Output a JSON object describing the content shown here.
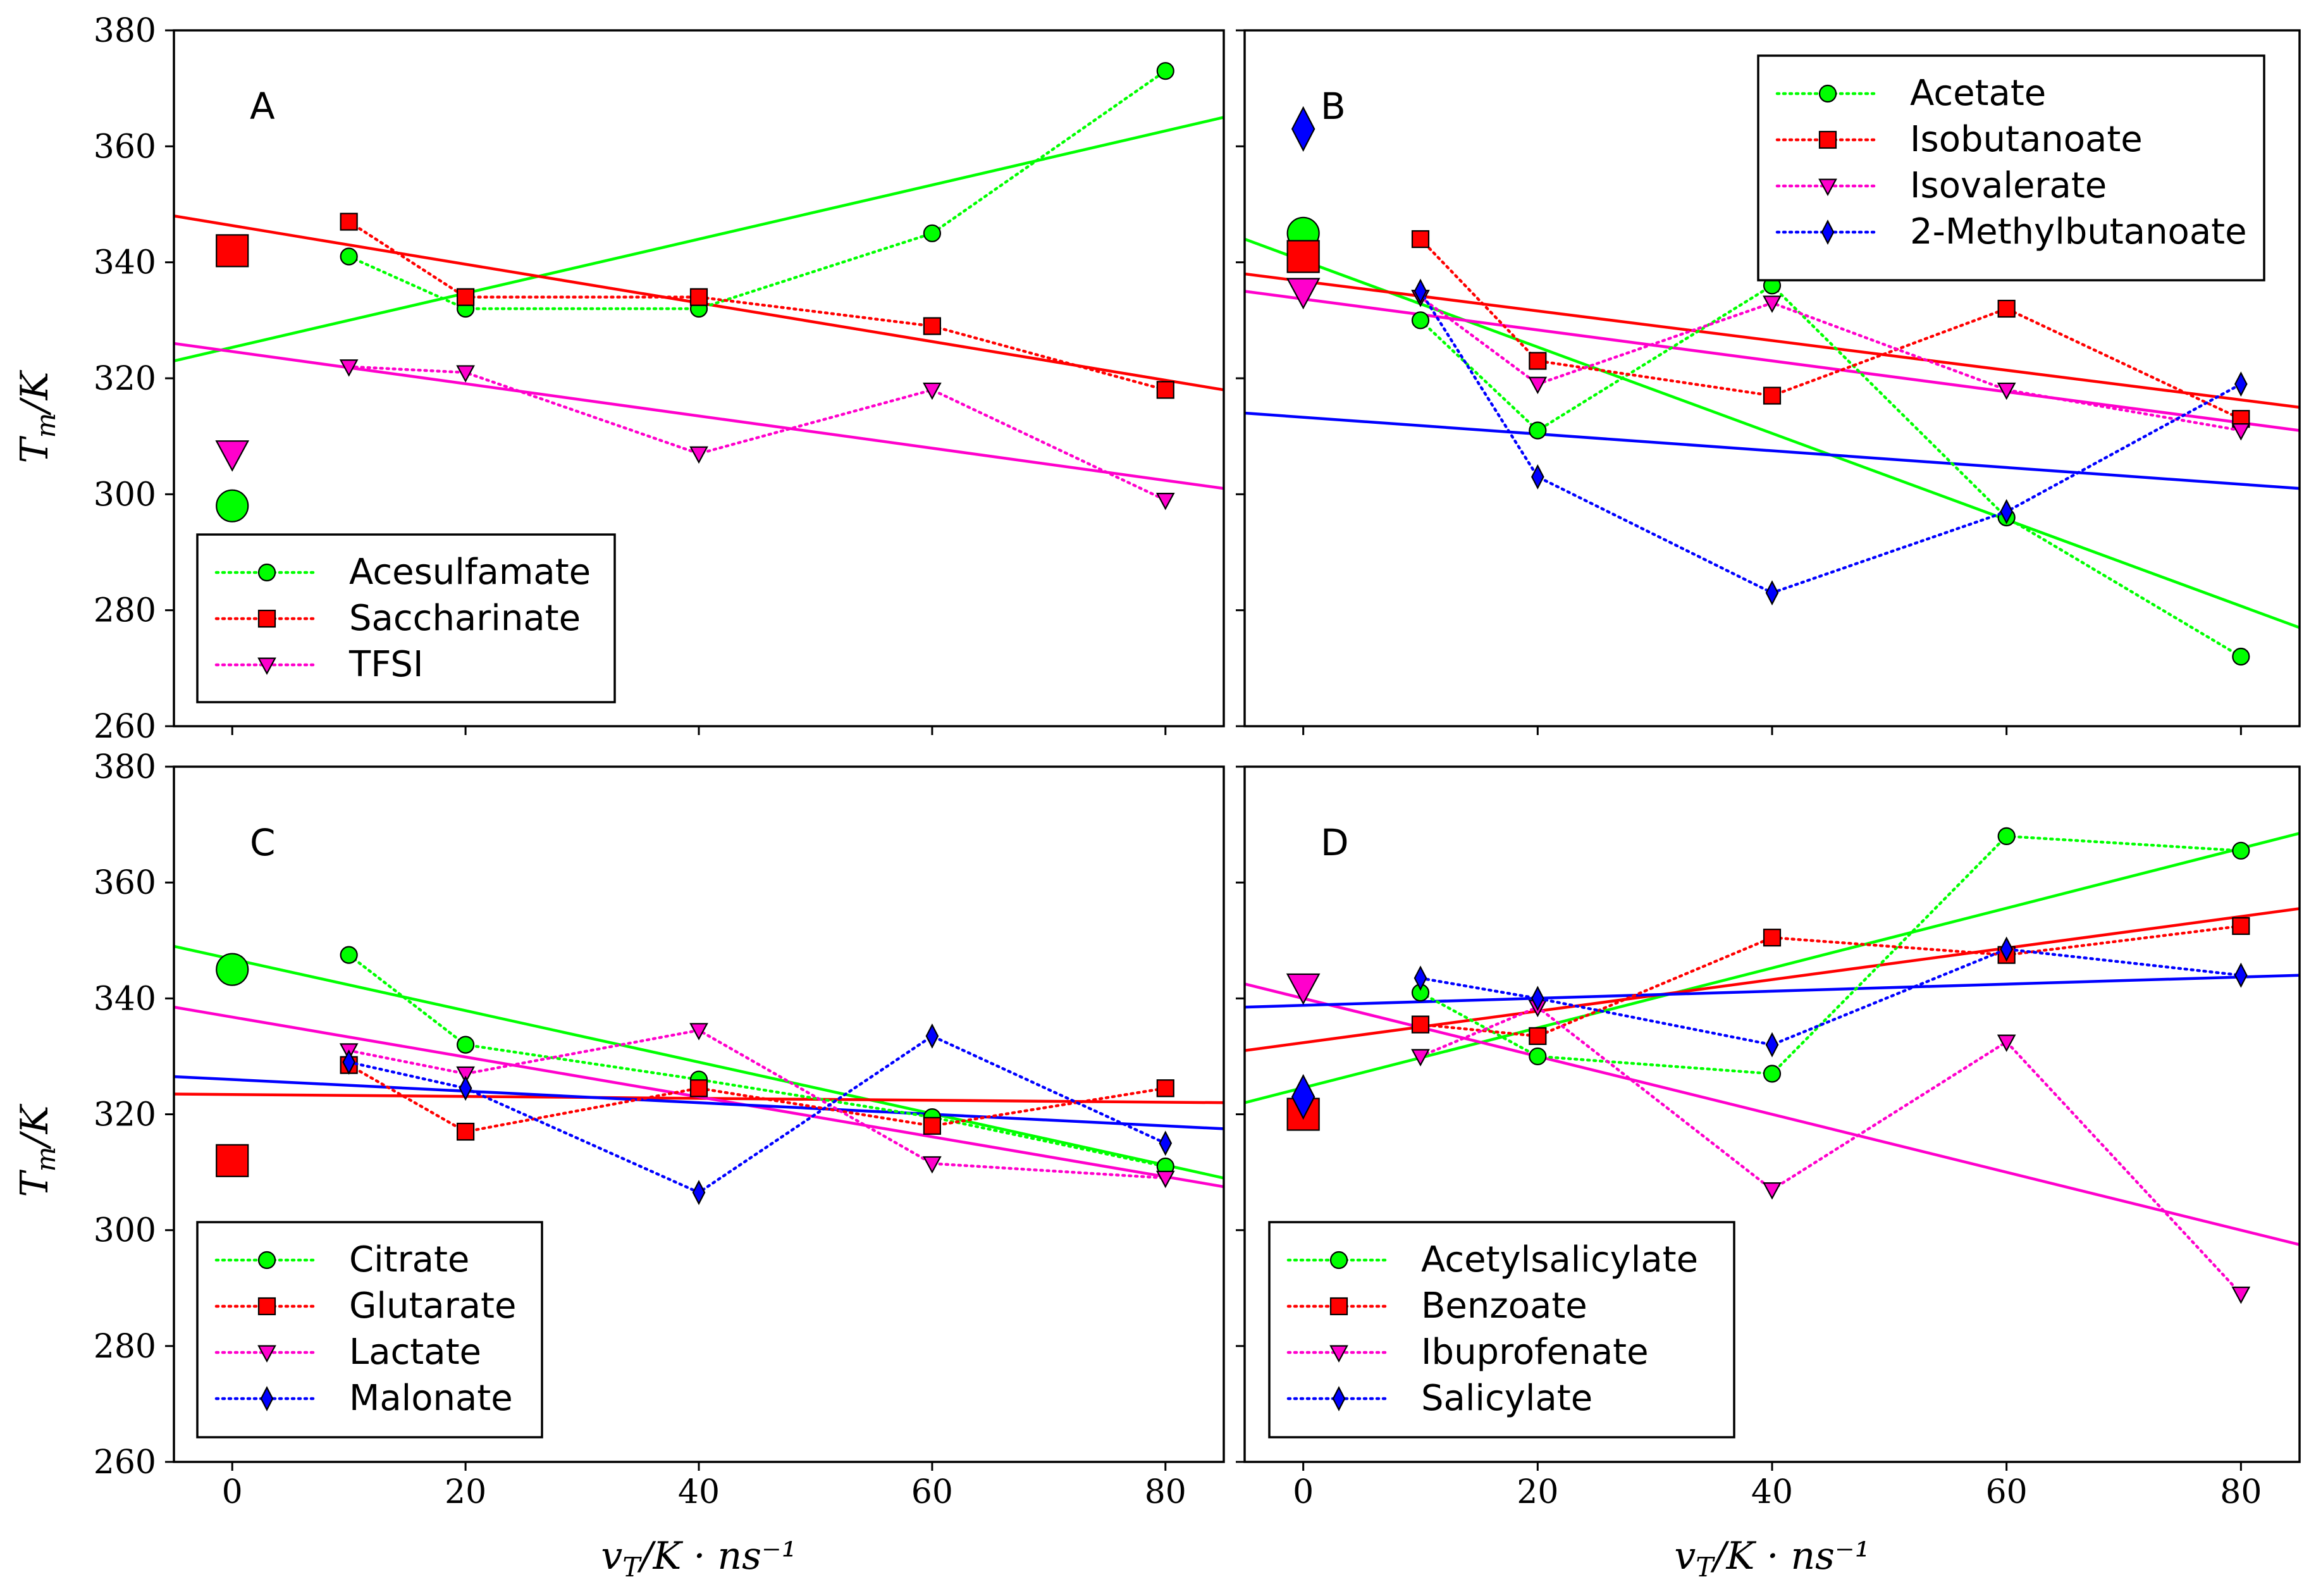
{
  "figure": {
    "ylabel": "T_m/K",
    "xlabel": "v_T/K · ns⁻¹"
  },
  "chart_data": [
    {
      "type": "line",
      "panel": "A",
      "xlim": [
        -5,
        85
      ],
      "ylim": [
        260,
        380
      ],
      "xticks": [
        0,
        20,
        40,
        60,
        80
      ],
      "yticks": [
        260,
        280,
        300,
        320,
        340,
        360,
        380
      ],
      "xlabel": "",
      "ylabel": "T_m/K",
      "legend_position": "bottom-left",
      "series": [
        {
          "name": "Acesulfamate",
          "color": "#00ff00",
          "marker": "circle",
          "x": [
            10,
            20,
            40,
            60,
            80
          ],
          "y": [
            341,
            332,
            332,
            345,
            373
          ],
          "x0_value": 298,
          "fit": [
            323,
            365
          ]
        },
        {
          "name": "Saccharinate",
          "color": "#ff0000",
          "marker": "square",
          "x": [
            10,
            20,
            40,
            60,
            80
          ],
          "y": [
            347,
            334,
            334,
            329,
            318
          ],
          "x0_value": 342,
          "fit": [
            348,
            318
          ]
        },
        {
          "name": "TFSI",
          "color": "#ff00cc",
          "marker": "triangle",
          "x": [
            10,
            20,
            40,
            60,
            80
          ],
          "y": [
            322,
            321,
            307,
            318,
            299
          ],
          "x0_value": 307,
          "fit": [
            326,
            301
          ]
        }
      ]
    },
    {
      "type": "line",
      "panel": "B",
      "xlim": [
        -5,
        85
      ],
      "ylim": [
        260,
        380
      ],
      "xticks": [
        0,
        20,
        40,
        60,
        80
      ],
      "yticks": [
        260,
        280,
        300,
        320,
        340,
        360,
        380
      ],
      "xlabel": "",
      "ylabel": "",
      "legend_position": "top-right",
      "series": [
        {
          "name": "Acetate",
          "color": "#00ff00",
          "marker": "circle",
          "x": [
            10,
            20,
            40,
            60,
            80
          ],
          "y": [
            330,
            311,
            336,
            296,
            272
          ],
          "x0_value": 345,
          "fit": [
            344,
            277
          ]
        },
        {
          "name": "Isobutanoate",
          "color": "#ff0000",
          "marker": "square",
          "x": [
            10,
            20,
            40,
            60,
            80
          ],
          "y": [
            344,
            323,
            317,
            332,
            313
          ],
          "x0_value": 341,
          "fit": [
            338,
            315
          ]
        },
        {
          "name": "Isovalerate",
          "color": "#ff00cc",
          "marker": "triangle",
          "x": [
            10,
            20,
            40,
            60,
            80
          ],
          "y": [
            334,
            319,
            333,
            318,
            311
          ],
          "x0_value": 335,
          "fit": [
            335,
            311
          ]
        },
        {
          "name": "2-Methylbutanoate",
          "color": "#0000ff",
          "marker": "diamond",
          "x": [
            10,
            20,
            40,
            60,
            80
          ],
          "y": [
            335,
            303,
            283,
            297,
            319
          ],
          "x0_value": 363,
          "fit": [
            314,
            301
          ]
        }
      ]
    },
    {
      "type": "line",
      "panel": "C",
      "xlim": [
        -5,
        85
      ],
      "ylim": [
        260,
        380
      ],
      "xticks": [
        0,
        20,
        40,
        60,
        80
      ],
      "yticks": [
        260,
        280,
        300,
        320,
        340,
        360,
        380
      ],
      "xlabel": "v_T/K · ns⁻¹",
      "ylabel": "T_m/K",
      "legend_position": "bottom-left",
      "series": [
        {
          "name": "Citrate",
          "color": "#00ff00",
          "marker": "circle",
          "x": [
            10,
            20,
            40,
            60,
            80
          ],
          "y": [
            347.5,
            332,
            326,
            319.5,
            311
          ],
          "x0_value": 345,
          "fit": [
            349,
            309
          ]
        },
        {
          "name": "Glutarate",
          "color": "#ff0000",
          "marker": "square",
          "x": [
            10,
            20,
            40,
            60,
            80
          ],
          "y": [
            328.5,
            317,
            324.5,
            318,
            324.5
          ],
          "x0_value": 312,
          "fit": [
            323.5,
            322
          ]
        },
        {
          "name": "Lactate",
          "color": "#ff00cc",
          "marker": "triangle",
          "x": [
            10,
            20,
            40,
            60,
            80
          ],
          "y": [
            331,
            327,
            334.5,
            311.5,
            309
          ],
          "x0_value": null,
          "fit": [
            338.5,
            307.5
          ]
        },
        {
          "name": "Malonate",
          "color": "#0000ff",
          "marker": "diamond",
          "x": [
            10,
            20,
            40,
            60,
            80
          ],
          "y": [
            329,
            324.5,
            306.5,
            333.5,
            315
          ],
          "x0_value": null,
          "fit": [
            326.5,
            317.5
          ]
        }
      ]
    },
    {
      "type": "line",
      "panel": "D",
      "xlim": [
        -5,
        85
      ],
      "ylim": [
        260,
        380
      ],
      "xticks": [
        0,
        20,
        40,
        60,
        80
      ],
      "yticks": [
        260,
        280,
        300,
        320,
        340,
        360,
        380
      ],
      "xlabel": "v_T/K · ns⁻¹",
      "ylabel": "",
      "legend_position": "bottom-left",
      "series": [
        {
          "name": "Acetylsalicylate",
          "color": "#00ff00",
          "marker": "circle",
          "x": [
            10,
            20,
            40,
            60,
            80
          ],
          "y": [
            341,
            330,
            327,
            368,
            365.5
          ],
          "x0_value": null,
          "fit": [
            322,
            368.5
          ]
        },
        {
          "name": "Benzoate",
          "color": "#ff0000",
          "marker": "square",
          "x": [
            10,
            20,
            40,
            60,
            80
          ],
          "y": [
            335.5,
            333.5,
            350.5,
            347.5,
            352.5
          ],
          "x0_value": 320,
          "fit": [
            331,
            355.5
          ]
        },
        {
          "name": "Ibuprofenate",
          "color": "#ff00cc",
          "marker": "triangle",
          "x": [
            10,
            20,
            40,
            60,
            80
          ],
          "y": [
            330,
            338.5,
            307,
            332.5,
            289
          ],
          "x0_value": 342,
          "fit": [
            342.5,
            297.5
          ]
        },
        {
          "name": "Salicylate",
          "color": "#0000ff",
          "marker": "diamond",
          "x": [
            10,
            20,
            40,
            60,
            80
          ],
          "y": [
            343.5,
            340,
            332,
            348.5,
            344
          ],
          "x0_value": 323,
          "fit": [
            338.5,
            344
          ]
        }
      ]
    }
  ]
}
